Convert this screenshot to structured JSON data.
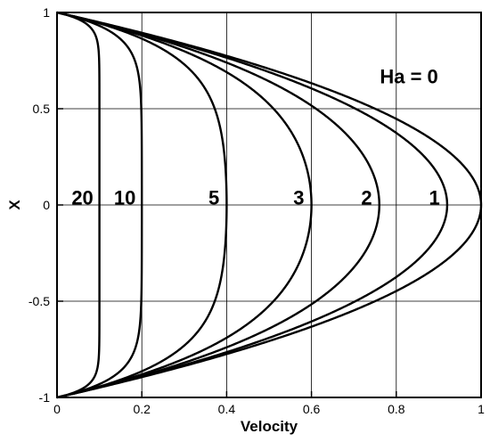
{
  "chart_data": {
    "type": "line",
    "title": "",
    "xlabel": "Velocity",
    "ylabel": "X",
    "xlim": [
      0,
      1
    ],
    "ylim": [
      -1,
      1
    ],
    "grid": true,
    "x_ticks": [
      0,
      0.2,
      0.4,
      0.6,
      0.8,
      1
    ],
    "x_tick_labels": [
      "0",
      "0.2",
      "0.4",
      "0.6",
      "0.8",
      "1"
    ],
    "y_ticks": [
      -1,
      -0.5,
      0,
      0.5,
      1
    ],
    "y_tick_labels": [
      "-1",
      "-0.5",
      "0",
      "0.5",
      "1"
    ],
    "series": [
      {
        "name": "Ha = 0",
        "label": "Ha = 0",
        "ha": 0,
        "peak": 1.0
      },
      {
        "name": "1",
        "label": "1",
        "ha": 1,
        "peak": 0.92
      },
      {
        "name": "2",
        "label": "2",
        "ha": 2,
        "peak": 0.76
      },
      {
        "name": "3",
        "label": "3",
        "ha": 3,
        "peak": 0.6
      },
      {
        "name": "5",
        "label": "5",
        "ha": 5,
        "peak": 0.4
      },
      {
        "name": "10",
        "label": "10",
        "ha": 10,
        "peak": 0.2
      },
      {
        "name": "20",
        "label": "20",
        "ha": 20,
        "peak": 0.1
      }
    ],
    "annotations": [
      {
        "text": "Ha = 0",
        "x": 0.83,
        "y": 0.67
      },
      {
        "text": "1",
        "x": 0.89,
        "y": 0.04
      },
      {
        "text": "2",
        "x": 0.73,
        "y": 0.04
      },
      {
        "text": "3",
        "x": 0.57,
        "y": 0.04
      },
      {
        "text": "5",
        "x": 0.37,
        "y": 0.04
      },
      {
        "text": "10",
        "x": 0.16,
        "y": 0.04
      },
      {
        "text": "20",
        "x": 0.06,
        "y": 0.04
      }
    ]
  }
}
